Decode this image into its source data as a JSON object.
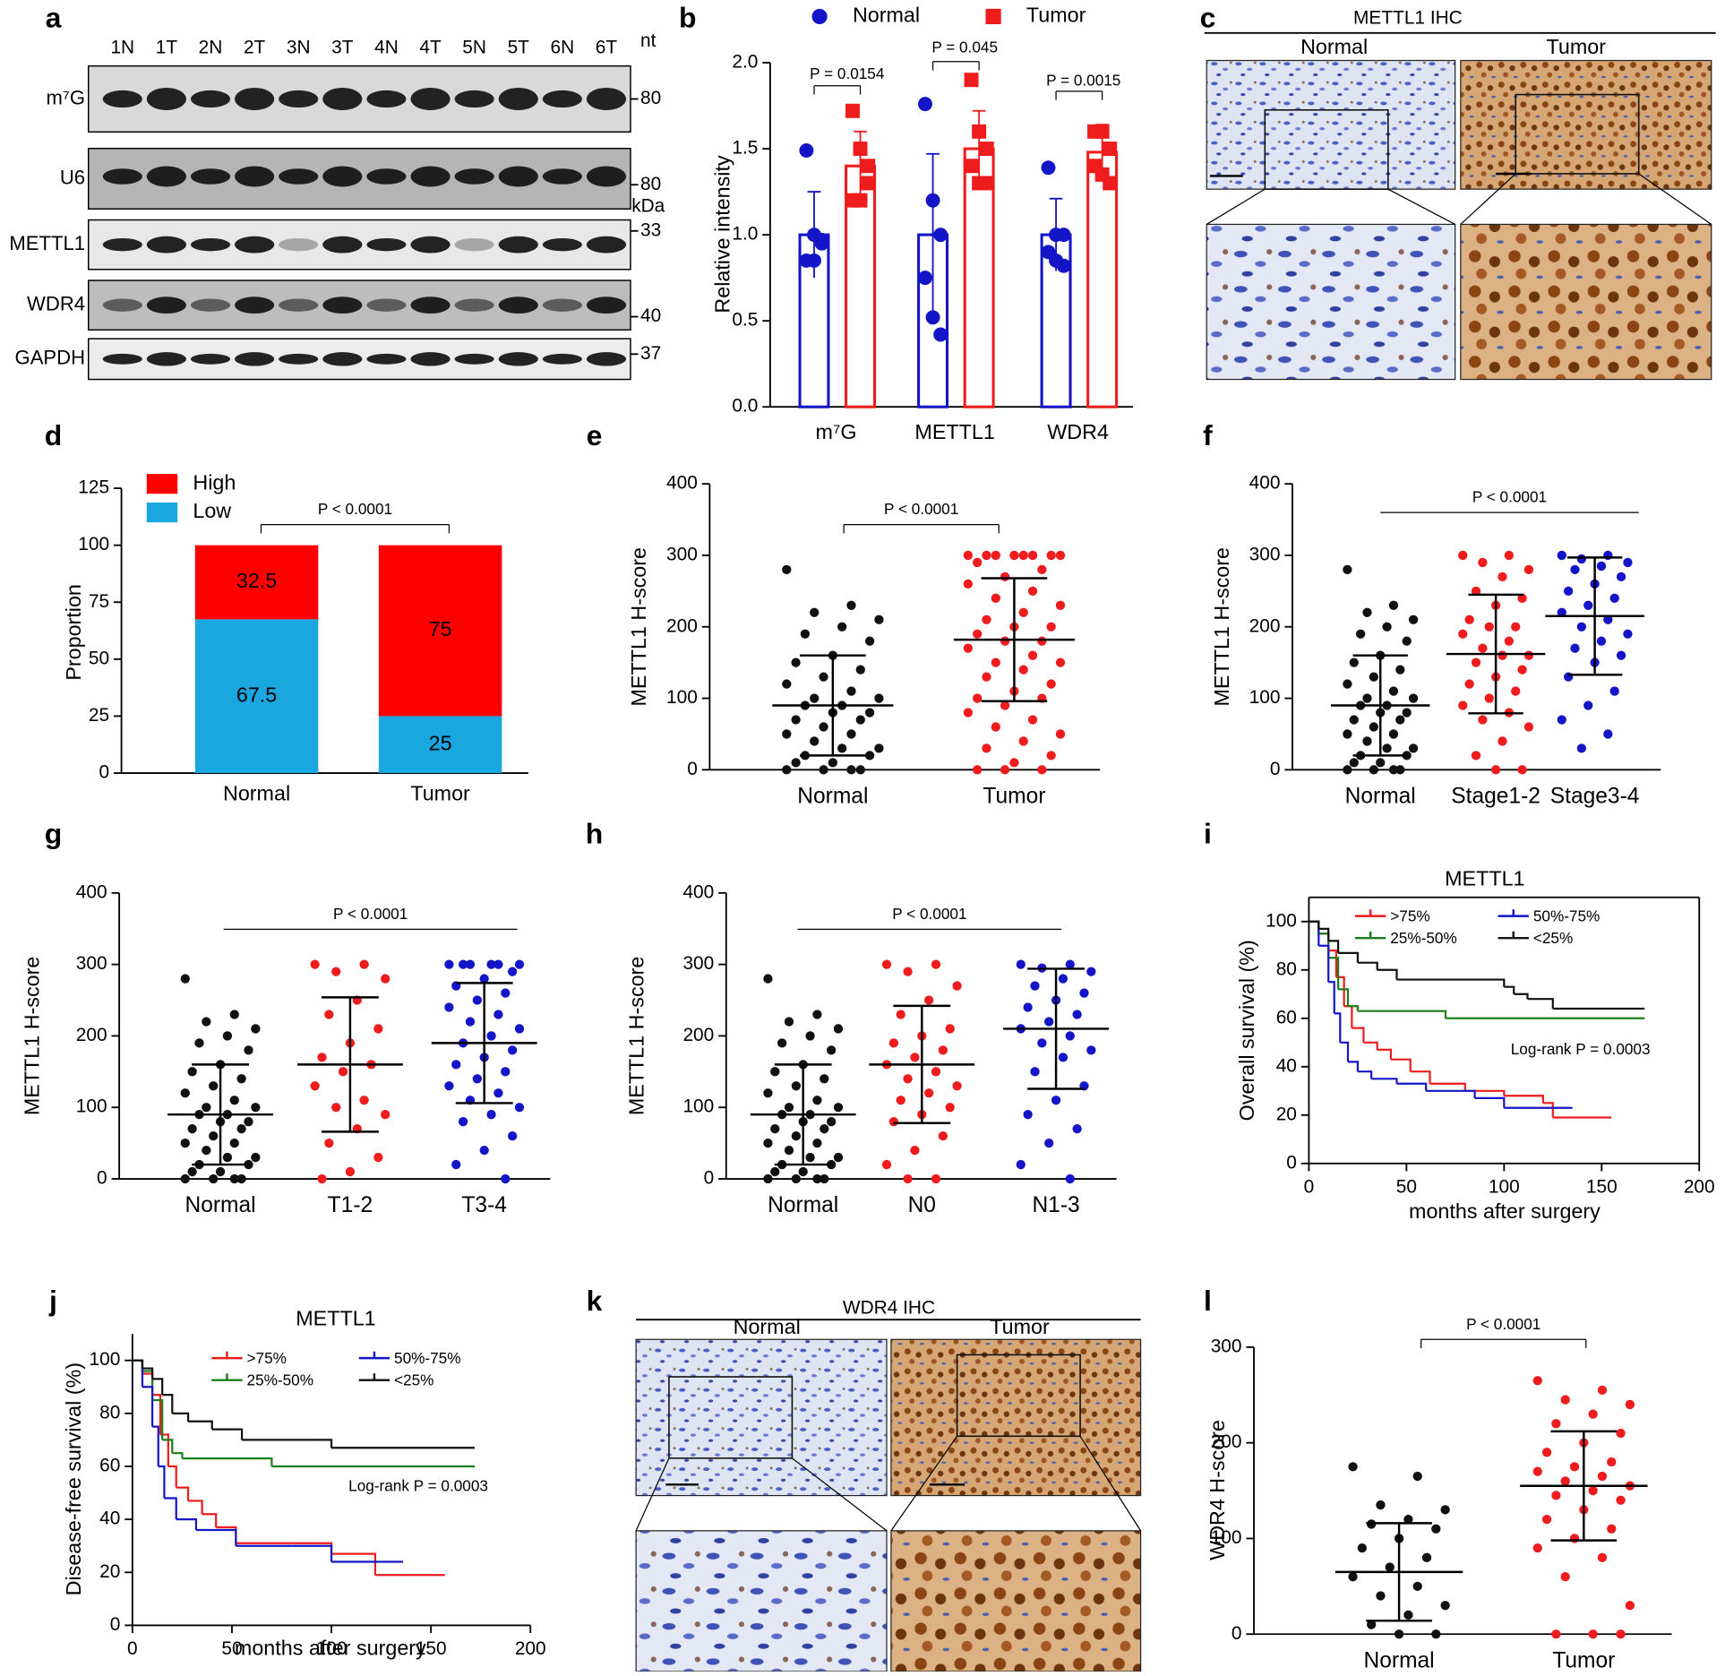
{
  "panel_labels": [
    "a",
    "b",
    "c",
    "d",
    "e",
    "f",
    "g",
    "h",
    "i",
    "j",
    "k",
    "l"
  ],
  "blot": {
    "lanes": [
      "1N",
      "1T",
      "2N",
      "2T",
      "3N",
      "3T",
      "4N",
      "4T",
      "5N",
      "5T",
      "6N",
      "6T"
    ],
    "rows": [
      "m⁷G",
      "U6",
      "METTL1",
      "WDR4",
      "GAPDH"
    ],
    "unit_nt": "nt",
    "unit_kda": "kDa",
    "markers": [
      "80",
      "80",
      "33",
      "40",
      "37"
    ]
  },
  "ihc_c": {
    "title": "METTL1 IHC",
    "columns": [
      "Normal",
      "Tumor"
    ]
  },
  "ihc_k": {
    "title": "WDR4 IHC",
    "columns": [
      "Normal",
      "Tumor"
    ]
  },
  "chart_data": [
    {
      "type": "bar",
      "ylabel": "Relative intensity",
      "categories": [
        "m⁷G",
        "METTL1",
        "WDR4"
      ],
      "ylim": [
        0,
        2
      ],
      "yticks": [
        {
          "value": 0,
          "label": "0.0"
        },
        {
          "value": 0.5,
          "label": "0.5"
        },
        {
          "value": 1,
          "label": "1.0"
        },
        {
          "value": 1.5,
          "label": "1.5"
        },
        {
          "value": 2,
          "label": "2.0"
        }
      ],
      "series": [
        {
          "name": "Normal",
          "color": "#1515c8",
          "values": [
            1,
            1,
            1
          ],
          "errors": [
            0.25,
            0.47,
            0.21
          ],
          "points": [
            [
              1.49,
              1.0,
              0.97,
              0.85,
              0.85,
              0.95
            ],
            [
              1.76,
              1.2,
              1.0,
              0.75,
              0.52,
              0.42
            ],
            [
              1.39,
              1.0,
              1.0,
              0.9,
              0.85,
              0.82
            ]
          ]
        },
        {
          "name": "Tumor",
          "color": "#ee1c1c",
          "values": [
            1.4,
            1.5,
            1.48
          ],
          "errors": [
            0.2,
            0.22,
            0.16
          ],
          "points": [
            [
              1.72,
              1.5,
              1.4,
              1.2,
              1.2,
              1.3
            ],
            [
              1.9,
              1.6,
              1.5,
              1.4,
              1.3,
              1.3
            ],
            [
              1.6,
              1.6,
              1.5,
              1.4,
              1.35,
              1.3
            ]
          ]
        }
      ],
      "annotations": [
        "P = 0.0154",
        "P = 0.045",
        "P = 0.0015"
      ]
    },
    {
      "type": "stacked",
      "ylabel": "Proportion",
      "categories": [
        "Normal",
        "Tumor"
      ],
      "ylim": [
        0,
        125
      ],
      "yticks": [
        0,
        25,
        50,
        75,
        100,
        125
      ],
      "series": [
        {
          "name": "High",
          "color": "#ff0000",
          "values": [
            32.5,
            75
          ]
        },
        {
          "name": "Low",
          "color": "#1aa7e0",
          "values": [
            67.5,
            25
          ]
        }
      ],
      "annotation": "P < 0.0001"
    },
    {
      "type": "dot",
      "ylabel": "METTL1 H-score",
      "categories": [
        "Normal",
        "Tumor"
      ],
      "ylim": [
        0,
        400
      ],
      "yticks": [
        0,
        100,
        200,
        300,
        400
      ],
      "annotation": "P < 0.0001",
      "groups": [
        {
          "color": "#111111",
          "mean": 90,
          "sd": 70,
          "values": [
            280,
            230,
            220,
            210,
            200,
            190,
            180,
            160,
            150,
            140,
            130,
            120,
            110,
            100,
            100,
            90,
            90,
            80,
            80,
            70,
            70,
            60,
            50,
            50,
            40,
            30,
            30,
            20,
            20,
            10,
            10,
            0,
            0,
            0,
            0
          ]
        },
        {
          "color": "#ee1c1c",
          "mean": 182,
          "sd": 86,
          "values": [
            300,
            300,
            300,
            300,
            300,
            300,
            300,
            300,
            290,
            280,
            270,
            260,
            250,
            240,
            230,
            220,
            210,
            200,
            200,
            190,
            180,
            180,
            170,
            160,
            150,
            150,
            140,
            130,
            120,
            110,
            100,
            100,
            90,
            80,
            70,
            60,
            50,
            40,
            30,
            20,
            10,
            0,
            0,
            0
          ]
        }
      ]
    },
    {
      "type": "dot",
      "ylabel": "METTL1 H-score",
      "categories": [
        "Normal",
        "Stage1-2",
        "Stage3-4"
      ],
      "ylim": [
        0,
        400
      ],
      "yticks": [
        0,
        100,
        200,
        300,
        400
      ],
      "annotation": "P < 0.0001",
      "groups": [
        {
          "color": "#111111",
          "mean": 90,
          "sd": 70,
          "values": [
            280,
            230,
            220,
            210,
            200,
            190,
            180,
            160,
            150,
            140,
            130,
            120,
            110,
            100,
            100,
            90,
            90,
            80,
            80,
            70,
            70,
            60,
            50,
            50,
            40,
            30,
            30,
            20,
            20,
            10,
            10,
            0,
            0,
            0,
            0
          ]
        },
        {
          "color": "#ee1c1c",
          "mean": 162,
          "sd": 83,
          "values": [
            300,
            300,
            290,
            280,
            270,
            250,
            240,
            230,
            210,
            200,
            200,
            190,
            180,
            170,
            160,
            160,
            150,
            140,
            130,
            120,
            110,
            100,
            90,
            80,
            70,
            60,
            40,
            20,
            0,
            0
          ]
        },
        {
          "color": "#1515c8",
          "mean": 215,
          "sd": 82,
          "values": [
            300,
            300,
            295,
            290,
            285,
            280,
            270,
            260,
            250,
            240,
            230,
            220,
            210,
            200,
            190,
            180,
            170,
            160,
            150,
            130,
            110,
            90,
            70,
            50,
            30
          ]
        }
      ]
    },
    {
      "type": "dot",
      "ylabel": "METTL1 H-score",
      "categories": [
        "Normal",
        "T1-2",
        "T3-4"
      ],
      "ylim": [
        0,
        400
      ],
      "yticks": [
        0,
        100,
        200,
        300,
        400
      ],
      "annotation": "P < 0.0001",
      "groups": [
        {
          "color": "#111111",
          "mean": 90,
          "sd": 70,
          "values": [
            280,
            230,
            220,
            210,
            200,
            190,
            180,
            160,
            150,
            140,
            130,
            120,
            110,
            100,
            100,
            90,
            90,
            80,
            80,
            70,
            70,
            60,
            50,
            50,
            40,
            30,
            30,
            20,
            20,
            10,
            10,
            0,
            0,
            0,
            0
          ]
        },
        {
          "color": "#ee1c1c",
          "mean": 160,
          "sd": 94,
          "values": [
            300,
            300,
            290,
            280,
            250,
            230,
            210,
            190,
            170,
            160,
            150,
            130,
            110,
            100,
            90,
            70,
            50,
            30,
            10,
            0
          ]
        },
        {
          "color": "#1515c8",
          "mean": 190,
          "sd": 84,
          "values": [
            300,
            300,
            300,
            300,
            300,
            300,
            290,
            280,
            270,
            260,
            250,
            240,
            230,
            220,
            210,
            200,
            190,
            180,
            170,
            160,
            150,
            140,
            130,
            120,
            110,
            100,
            90,
            80,
            60,
            40,
            20,
            0
          ]
        }
      ]
    },
    {
      "type": "dot",
      "ylabel": "METTL1 H-score",
      "categories": [
        "Normal",
        "N0",
        "N1-3"
      ],
      "ylim": [
        0,
        400
      ],
      "yticks": [
        0,
        100,
        200,
        300,
        400
      ],
      "annotation": "P < 0.0001",
      "groups": [
        {
          "color": "#111111",
          "mean": 90,
          "sd": 70,
          "values": [
            280,
            230,
            220,
            210,
            200,
            190,
            180,
            160,
            150,
            140,
            130,
            120,
            110,
            100,
            100,
            90,
            90,
            80,
            80,
            70,
            70,
            60,
            50,
            50,
            40,
            30,
            30,
            20,
            20,
            10,
            10,
            0,
            0,
            0,
            0
          ]
        },
        {
          "color": "#ee1c1c",
          "mean": 160,
          "sd": 82,
          "values": [
            300,
            300,
            290,
            270,
            250,
            230,
            210,
            200,
            190,
            180,
            170,
            160,
            150,
            140,
            130,
            120,
            110,
            100,
            90,
            80,
            60,
            40,
            20,
            0,
            0
          ]
        },
        {
          "color": "#1515c8",
          "mean": 210,
          "sd": 84,
          "values": [
            300,
            300,
            295,
            290,
            280,
            270,
            260,
            250,
            240,
            230,
            220,
            210,
            200,
            190,
            180,
            170,
            150,
            130,
            110,
            90,
            70,
            50,
            20,
            0
          ]
        }
      ]
    },
    {
      "type": "km",
      "title": "METTL1",
      "xlabel": "months after surgery",
      "ylabel": "Overall survival (%)",
      "annotation": "Log-rank P = 0.0003",
      "xlim": [
        0,
        200
      ],
      "xticks": [
        0,
        50,
        100,
        150,
        200
      ],
      "ylim": [
        0,
        110
      ],
      "yticks": [
        0,
        20,
        40,
        60,
        80,
        100
      ],
      "series": [
        {
          "name": ">75%",
          "color": "#ee1c1c",
          "x": [
            0,
            5,
            10,
            14,
            18,
            22,
            28,
            35,
            42,
            52,
            62,
            80,
            100,
            120,
            125,
            155
          ],
          "y": [
            100,
            95,
            88,
            77,
            65,
            56,
            50,
            47,
            43,
            38,
            33,
            30,
            28,
            25,
            19,
            19
          ]
        },
        {
          "name": "25%-50%",
          "color": "#1a7f1a",
          "x": [
            0,
            5,
            10,
            15,
            20,
            25,
            70,
            172
          ],
          "y": [
            100,
            95,
            85,
            72,
            65,
            63,
            60,
            60
          ]
        },
        {
          "name": "50%-75%",
          "color": "#1515c8",
          "x": [
            0,
            5,
            10,
            13,
            16,
            20,
            25,
            32,
            45,
            60,
            85,
            100,
            135
          ],
          "y": [
            100,
            90,
            75,
            62,
            50,
            42,
            38,
            35,
            33,
            30,
            27,
            23,
            23
          ]
        },
        {
          "name": "<25%",
          "color": "#111111",
          "x": [
            0,
            5,
            10,
            15,
            25,
            35,
            45,
            90,
            100,
            105,
            112,
            125,
            172
          ],
          "y": [
            100,
            97,
            92,
            87,
            83,
            80,
            76,
            76,
            73,
            70,
            68,
            64,
            64
          ]
        }
      ]
    },
    {
      "type": "km",
      "title": "METTL1",
      "xlabel": "months after surgery",
      "ylabel": "Disease-free survival (%)",
      "annotation": "Log-rank P = 0.0003",
      "xlim": [
        0,
        200
      ],
      "xticks": [
        0,
        50,
        100,
        150,
        200
      ],
      "ylim": [
        0,
        110
      ],
      "yticks": [
        0,
        20,
        40,
        60,
        80,
        100
      ],
      "series": [
        {
          "name": ">75%",
          "color": "#ee1c1c",
          "x": [
            0,
            5,
            10,
            14,
            18,
            22,
            28,
            35,
            42,
            52,
            100,
            122,
            157
          ],
          "y": [
            100,
            95,
            87,
            72,
            60,
            52,
            47,
            42,
            37,
            31,
            27,
            19,
            19
          ]
        },
        {
          "name": "25%-50%",
          "color": "#1a7f1a",
          "x": [
            0,
            5,
            10,
            15,
            20,
            25,
            70,
            172
          ],
          "y": [
            100,
            96,
            85,
            70,
            65,
            63,
            60,
            60
          ]
        },
        {
          "name": "50%-75%",
          "color": "#1515c8",
          "x": [
            0,
            5,
            10,
            13,
            16,
            22,
            32,
            52,
            80,
            100,
            125,
            136
          ],
          "y": [
            100,
            90,
            75,
            60,
            48,
            40,
            36,
            30,
            30,
            24,
            24,
            24
          ]
        },
        {
          "name": "<25%",
          "color": "#111111",
          "x": [
            0,
            5,
            10,
            15,
            20,
            28,
            40,
            55,
            95,
            100,
            172
          ],
          "y": [
            100,
            97,
            93,
            87,
            80,
            77,
            74,
            70,
            70,
            67,
            67
          ]
        }
      ]
    },
    {
      "type": "dot",
      "ylabel": "WDR4 H-score",
      "categories": [
        "Normal",
        "Tumor"
      ],
      "ylim": [
        0,
        300
      ],
      "yticks": [
        0,
        100,
        200,
        300
      ],
      "annotation": "P < 0.0001",
      "groups": [
        {
          "color": "#111111",
          "mean": 65,
          "sd": 51,
          "values": [
            175,
            165,
            135,
            130,
            120,
            115,
            110,
            100,
            90,
            80,
            70,
            60,
            50,
            40,
            30,
            20,
            10,
            0,
            0
          ]
        },
        {
          "color": "#ee1c1c",
          "mean": 155,
          "sd": 57,
          "values": [
            265,
            255,
            245,
            240,
            230,
            220,
            210,
            200,
            190,
            180,
            175,
            170,
            165,
            160,
            155,
            150,
            145,
            140,
            130,
            120,
            110,
            100,
            90,
            80,
            60,
            30,
            0,
            0,
            0
          ]
        }
      ]
    }
  ]
}
